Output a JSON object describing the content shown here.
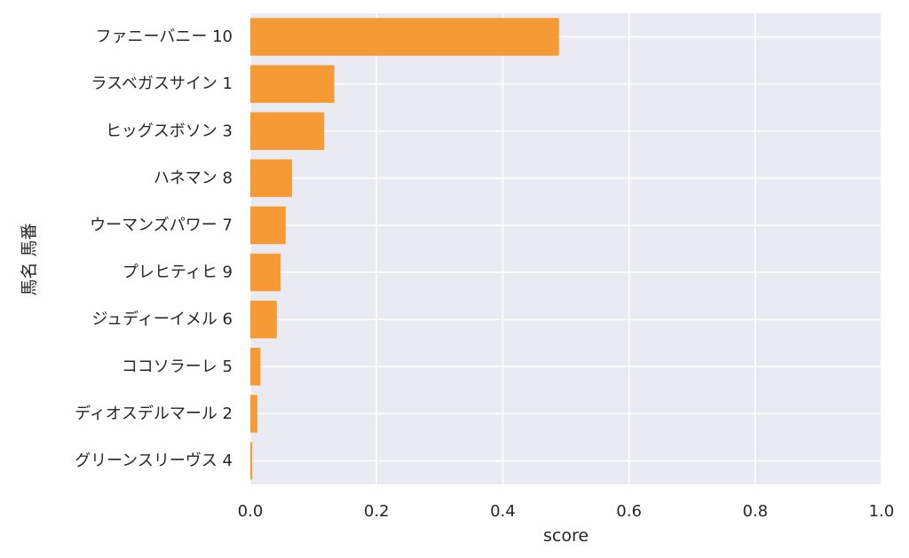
{
  "chart_data": {
    "type": "bar",
    "orientation": "horizontal",
    "categories": [
      "ファニーバニー 10",
      "ラスベガスサイン 1",
      "ヒッグスボソン 3",
      "ハネマン 8",
      "ウーマンズパワー 7",
      "プレヒティヒ 9",
      "ジュディーイメル 6",
      "ココソラーレ 5",
      "ディオスデルマール 2",
      "グリーンスリーヴス 4"
    ],
    "values": [
      0.489,
      0.133,
      0.117,
      0.066,
      0.056,
      0.048,
      0.042,
      0.016,
      0.011,
      0.003
    ],
    "xlabel": "score",
    "ylabel": "馬名 馬番",
    "xlim": [
      0.0,
      1.0
    ],
    "xticks": [
      "0.0",
      "0.2",
      "0.4",
      "0.6",
      "0.8",
      "1.0"
    ],
    "grid": true,
    "colors": {
      "bar": "#f7962b",
      "plot_background": "#eaeaf2",
      "grid": "#ffffff",
      "text": "#262626"
    }
  }
}
